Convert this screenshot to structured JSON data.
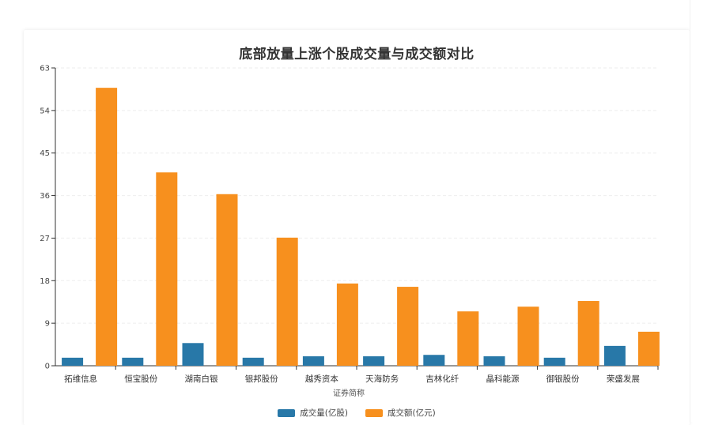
{
  "chart_data": {
    "type": "bar",
    "title": "底部放量上涨个股成交量与成交额对比",
    "xlabel": "证券简称",
    "ylabel": "",
    "ylim": [
      0,
      63
    ],
    "yticks": [
      0,
      9,
      18,
      27,
      36,
      45,
      54,
      63
    ],
    "grid": true,
    "legend_position": "bottom",
    "categories": [
      "拓维信息",
      "恒宝股份",
      "湖南白银",
      "银邦股份",
      "越秀资本",
      "天海防务",
      "吉林化纤",
      "晶科能源",
      "御银股份",
      "荣盛发展"
    ],
    "series": [
      {
        "name": "成交量(亿股)",
        "color": "#2878a8",
        "values": [
          1.7,
          1.7,
          4.8,
          1.7,
          2.0,
          2.0,
          2.3,
          2.0,
          1.7,
          4.2
        ]
      },
      {
        "name": "成交额(亿元)",
        "color": "#f7901e",
        "values": [
          58.8,
          40.9,
          36.3,
          27.1,
          17.4,
          16.7,
          11.5,
          12.5,
          13.7,
          7.2
        ]
      }
    ]
  },
  "colors": {
    "volume": "#2878a8",
    "amount": "#f7901e",
    "axis": "#333333",
    "grid": "#eeeeee"
  }
}
